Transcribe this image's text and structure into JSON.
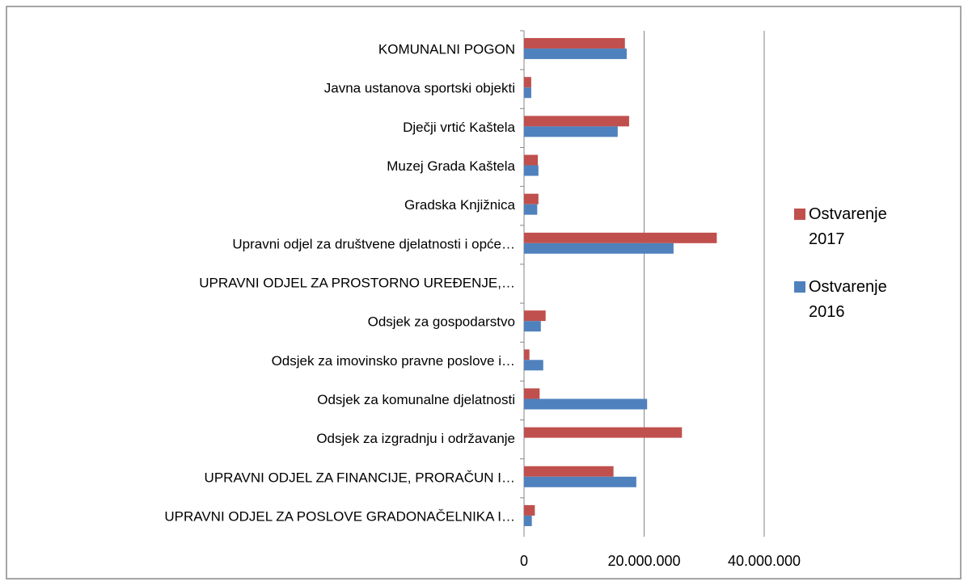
{
  "chart_data": {
    "type": "hbar",
    "categories": [
      "KOMUNALNI POGON",
      "Javna ustanova sportski objekti",
      "Dječji vrtić Kaštela",
      "Muzej Grada Kaštela",
      "Gradska Knjižnica",
      "Upravni odjel za društvene djelatnosti i opće…",
      "UPRAVNI ODJEL ZA PROSTORNO UREĐENJE,…",
      "Odsjek za gospodarstvo",
      "Odsjek za imovinsko pravne poslove i…",
      "Odsjek za komunalne djelatnosti",
      "Odsjek za izgradnju i održavanje",
      "UPRAVNI ODJEL ZA FINANCIJE, PRORAČUN I…",
      "UPRAVNI ODJEL ZA POSLOVE GRADONAČELNIKA I…"
    ],
    "series": [
      {
        "name": "Ostvarenje 2017",
        "color": "#c0504d",
        "values": [
          16800000,
          1200000,
          17500000,
          2300000,
          2400000,
          32100000,
          null,
          3600000,
          900000,
          2600000,
          26300000,
          14900000,
          1800000
        ]
      },
      {
        "name": "Ostvarenje 2016",
        "color": "#4f81bd",
        "values": [
          17100000,
          1200000,
          15600000,
          2400000,
          2200000,
          24900000,
          null,
          2800000,
          3200000,
          20500000,
          null,
          18700000,
          1300000
        ]
      }
    ],
    "xlim": [
      0,
      40000000
    ],
    "xticks": [
      0,
      {
        "value": 20000000,
        "label": "20.000.000"
      },
      {
        "value": 40000000,
        "label": "40.000.000"
      }
    ],
    "grid": true,
    "legend": "right"
  }
}
